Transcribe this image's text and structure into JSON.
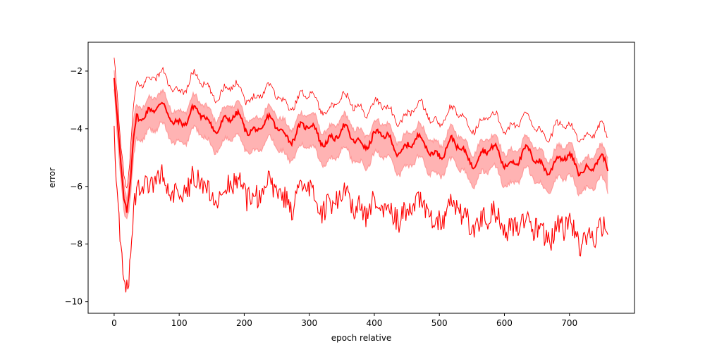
{
  "chart_data": {
    "type": "line",
    "title": "",
    "xlabel": "epoch relative",
    "ylabel": "error",
    "xlim": [
      -40,
      800
    ],
    "ylim": [
      -10.4,
      -1.0
    ],
    "xticks": [
      0,
      100,
      200,
      300,
      400,
      500,
      600,
      700
    ],
    "yticks": [
      -10,
      -8,
      -6,
      -4,
      -2
    ],
    "grid": false,
    "legend": "none",
    "colors": {
      "line": "#ff0000",
      "band": "#ffb3b3",
      "band_edge": "#ff9a9a"
    },
    "x": [
      0,
      5,
      10,
      15,
      20,
      25,
      30,
      35,
      40,
      60,
      80,
      100,
      120,
      150,
      180,
      200,
      220,
      250,
      280,
      300,
      320,
      350,
      380,
      400,
      420,
      450,
      480,
      500,
      520,
      550,
      580,
      600,
      620,
      650,
      680,
      700,
      720,
      740,
      760
    ],
    "series": [
      {
        "role": "upper envelope (thin line)",
        "values": [
          -1.6,
          -3.2,
          -4.8,
          -5.8,
          -6.3,
          -5.0,
          -3.2,
          -2.2,
          -2.1,
          -2.3,
          -2.4,
          -2.5,
          -2.4,
          -2.6,
          -2.7,
          -2.8,
          -2.7,
          -2.9,
          -3.0,
          -3.0,
          -3.1,
          -3.2,
          -3.1,
          -3.3,
          -3.4,
          -3.5,
          -3.4,
          -3.6,
          -3.6,
          -3.7,
          -3.8,
          -3.8,
          -3.7,
          -4.0,
          -4.0,
          -4.1,
          -4.1,
          -4.2,
          -4.3
        ]
      },
      {
        "role": "band upper",
        "values": [
          -2.0,
          -3.6,
          -5.1,
          -6.1,
          -6.6,
          -5.4,
          -3.7,
          -2.9,
          -2.9,
          -3.0,
          -3.1,
          -3.2,
          -3.2,
          -3.3,
          -3.4,
          -3.4,
          -3.5,
          -3.6,
          -3.7,
          -3.7,
          -3.8,
          -3.9,
          -3.9,
          -4.0,
          -4.0,
          -4.2,
          -4.2,
          -4.3,
          -4.3,
          -4.5,
          -4.5,
          -4.6,
          -4.6,
          -4.7,
          -4.8,
          -4.8,
          -4.9,
          -4.9,
          -5.0
        ]
      },
      {
        "role": "mean (thick line)",
        "values": [
          -2.2,
          -4.0,
          -5.5,
          -6.6,
          -7.0,
          -6.0,
          -4.3,
          -3.3,
          -3.3,
          -3.4,
          -3.5,
          -3.6,
          -3.6,
          -3.7,
          -3.8,
          -3.8,
          -3.9,
          -4.0,
          -4.1,
          -4.1,
          -4.2,
          -4.3,
          -4.3,
          -4.4,
          -4.4,
          -4.6,
          -4.6,
          -4.7,
          -4.7,
          -4.9,
          -4.9,
          -5.0,
          -5.0,
          -5.1,
          -5.2,
          -5.2,
          -5.2,
          -5.3,
          -5.4
        ]
      },
      {
        "role": "band lower",
        "values": [
          -2.6,
          -4.6,
          -6.0,
          -7.0,
          -7.3,
          -6.6,
          -5.0,
          -4.1,
          -4.0,
          -4.1,
          -4.2,
          -4.3,
          -4.3,
          -4.4,
          -4.5,
          -4.5,
          -4.6,
          -4.7,
          -4.8,
          -4.8,
          -4.9,
          -5.0,
          -5.0,
          -5.1,
          -5.1,
          -5.3,
          -5.3,
          -5.4,
          -5.4,
          -5.6,
          -5.6,
          -5.7,
          -5.7,
          -5.8,
          -5.9,
          -5.9,
          -5.9,
          -6.0,
          -6.2
        ]
      },
      {
        "role": "lower noisy series (thick)",
        "values": [
          -4.3,
          -6.5,
          -8.3,
          -9.3,
          -9.6,
          -8.8,
          -6.8,
          -5.9,
          -5.8,
          -5.9,
          -6.0,
          -6.0,
          -6.0,
          -6.1,
          -6.1,
          -6.1,
          -6.2,
          -6.3,
          -6.4,
          -6.4,
          -6.5,
          -6.5,
          -6.6,
          -6.7,
          -6.8,
          -6.8,
          -6.9,
          -7.0,
          -7.0,
          -7.1,
          -7.2,
          -7.3,
          -7.3,
          -7.5,
          -7.6,
          -7.6,
          -7.7,
          -7.7,
          -7.8
        ]
      }
    ]
  }
}
